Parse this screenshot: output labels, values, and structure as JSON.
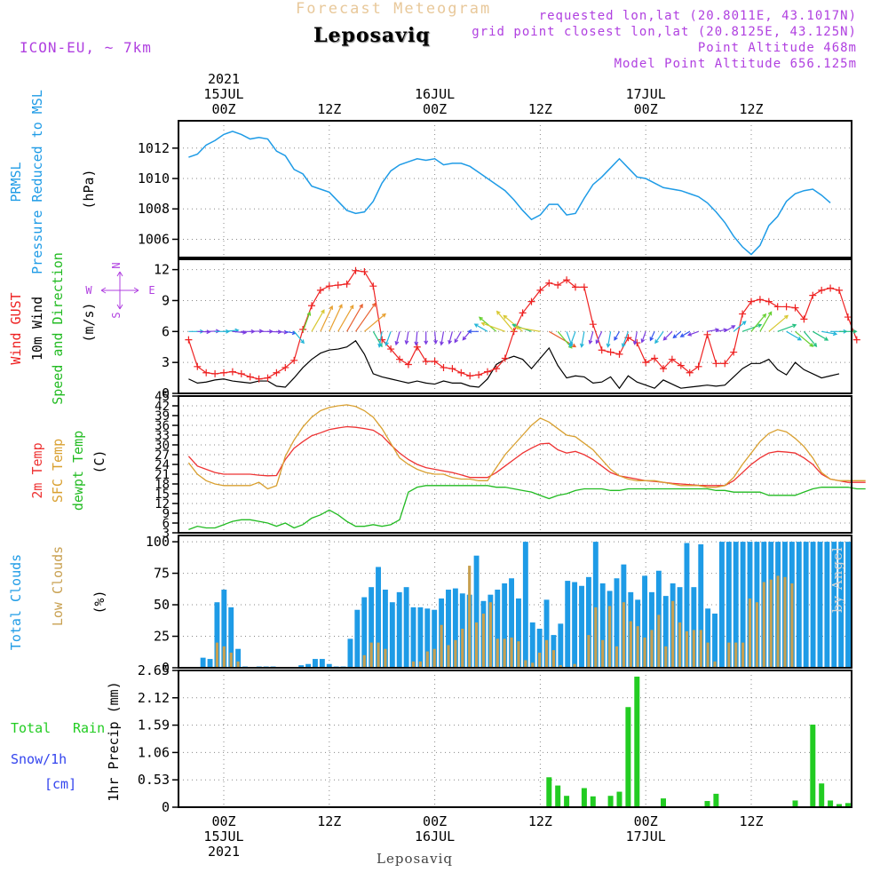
{
  "header": {
    "title": "Forecast Meteogram",
    "location": "Leposaviq",
    "model": "ICON-EU, ~ 7km",
    "requested": "requested lon,lat (20.8011E, 43.1017N)",
    "grid_point": "grid point closest lon,lat (20.8125E, 43.125N)",
    "point_altitude": "Point Altitude 468m",
    "model_altitude": "Model Point Altitude 656.125m"
  },
  "footer": {
    "location": "Leposaviq",
    "credit": "by Angel"
  },
  "time_axis": {
    "start": "2021-07-14T20:00Z",
    "step_hours": 1,
    "top_labels": [
      {
        "t": 4,
        "lines": [
          "2021",
          "15JUL",
          "00Z"
        ]
      },
      {
        "t": 16,
        "lines": [
          "12Z"
        ]
      },
      {
        "t": 28,
        "lines": [
          "16JUL",
          "00Z"
        ]
      },
      {
        "t": 40,
        "lines": [
          "12Z"
        ]
      },
      {
        "t": 52,
        "lines": [
          "17JUL",
          "00Z"
        ]
      },
      {
        "t": 64,
        "lines": [
          "12Z"
        ]
      }
    ],
    "bottom_labels": [
      {
        "t": 4,
        "lines": [
          "00Z",
          "15JUL",
          "2021"
        ]
      },
      {
        "t": 16,
        "lines": [
          "12Z"
        ]
      },
      {
        "t": 28,
        "lines": [
          "00Z",
          "16JUL"
        ]
      },
      {
        "t": 40,
        "lines": [
          "12Z"
        ]
      },
      {
        "t": 52,
        "lines": [
          "00Z",
          "17JUL"
        ]
      },
      {
        "t": 64,
        "lines": [
          "12Z"
        ]
      }
    ]
  },
  "colors": {
    "pressure": "#1e9be6",
    "gust": "#ee2222",
    "wind": "#000000",
    "wind_dir_label": "#22bb22",
    "temp2m": "#ee3333",
    "sfc_temp": "#d9a030",
    "dewpt": "#22bb22",
    "total_cloud": "#1e9be6",
    "low_cloud": "#c8a050",
    "rain": "#22cc22",
    "snow": "#3344ee",
    "compass": "#b040e0",
    "header_info": "#b040e0",
    "title": "#e8c89a"
  },
  "chart_data": [
    {
      "type": "line",
      "panel": "pressure",
      "ylabel": [
        "PRMSL",
        "Pressure Reduced to MSL"
      ],
      "unit": "(hPa)",
      "ylim": [
        1004.8,
        1013.8
      ],
      "yticks": [
        1006,
        1008,
        1010,
        1012
      ],
      "grid": true,
      "series": [
        {
          "name": "PRMSL",
          "values": [
            1011.4,
            1011.6,
            1012.2,
            1012.5,
            1012.9,
            1013.1,
            1012.9,
            1012.6,
            1012.7,
            1012.6,
            1011.8,
            1011.5,
            1010.6,
            1010.3,
            1009.5,
            1009.3,
            1009.1,
            1008.5,
            1007.9,
            1007.7,
            1007.8,
            1008.5,
            1009.7,
            1010.5,
            1010.9,
            1011.1,
            1011.3,
            1011.2,
            1011.3,
            1010.9,
            1011.0,
            1011.0,
            1010.8,
            1010.4,
            1010.0,
            1009.6,
            1009.2,
            1008.6,
            1007.9,
            1007.3,
            1007.6,
            1008.3,
            1008.3,
            1007.6,
            1007.7,
            1008.7,
            1009.6,
            1010.1,
            1010.7,
            1011.3,
            1010.7,
            1010.1,
            1010.0,
            1009.7,
            1009.4,
            1009.3,
            1009.2,
            1009.0,
            1008.8,
            1008.4,
            1007.8,
            1007.1,
            1006.2,
            1005.5,
            1005.0,
            1005.6,
            1006.9,
            1007.5,
            1008.5,
            1009.0,
            1009.2,
            1009.3,
            1008.9,
            1008.4
          ]
        }
      ]
    },
    {
      "type": "line",
      "panel": "wind",
      "ylabel": [
        "Wind GUST",
        "10m Wind",
        "Speed and Direction"
      ],
      "unit": "(m/s)",
      "ylim": [
        0,
        13
      ],
      "yticks": [
        0,
        3,
        6,
        9,
        12
      ],
      "compass_labels": {
        "n": "N",
        "s": "S",
        "e": "E",
        "w": "W"
      },
      "grid": true,
      "series": [
        {
          "name": "Wind GUST",
          "values": [
            5.2,
            2.6,
            2.0,
            1.9,
            2.0,
            2.1,
            1.9,
            1.6,
            1.4,
            1.5,
            2.0,
            2.5,
            3.2,
            6.2,
            8.5,
            10.0,
            10.4,
            10.5,
            10.6,
            11.9,
            11.8,
            10.4,
            5.2,
            4.3,
            3.3,
            2.8,
            4.5,
            3.1,
            3.1,
            2.5,
            2.4,
            2.0,
            1.7,
            1.8,
            2.1,
            2.4,
            3.4,
            6.0,
            7.8,
            8.9,
            10.0,
            10.7,
            10.5,
            11.0,
            10.3,
            10.3,
            6.7,
            4.2,
            4.0,
            3.8,
            5.4,
            4.9,
            3.0,
            3.4,
            2.4,
            3.3,
            2.7,
            2.0,
            2.6,
            5.7,
            2.9,
            2.9,
            4.0,
            7.7,
            8.9,
            9.1,
            8.9,
            8.4,
            8.4,
            8.3,
            7.2,
            9.5,
            10.0,
            10.2,
            10.0,
            7.4,
            5.2
          ]
        },
        {
          "name": "10m Wind",
          "values": [
            1.4,
            1.0,
            1.1,
            1.3,
            1.4,
            1.2,
            1.1,
            1.0,
            1.2,
            1.2,
            0.7,
            0.6,
            1.5,
            2.5,
            3.3,
            3.9,
            4.2,
            4.3,
            4.5,
            5.1,
            3.8,
            1.9,
            1.6,
            1.4,
            1.2,
            1.0,
            1.2,
            1.0,
            0.9,
            1.2,
            1.0,
            1.0,
            0.7,
            0.6,
            1.4,
            2.8,
            3.3,
            3.6,
            3.3,
            2.4,
            3.4,
            4.4,
            2.7,
            1.5,
            1.7,
            1.6,
            1.0,
            1.1,
            1.6,
            0.5,
            1.7,
            1.1,
            0.8,
            0.5,
            1.3,
            0.9,
            0.5,
            0.6,
            0.7,
            0.8,
            0.7,
            0.8,
            1.6,
            2.4,
            2.9,
            2.9,
            3.3,
            2.3,
            1.8,
            3.0,
            2.3,
            1.9,
            1.5,
            1.7,
            1.9
          ]
        }
      ],
      "wind_barb_level": 6,
      "wind_direction_deg": [
        270,
        272,
        268,
        270,
        265,
        275,
        270,
        268,
        270,
        272,
        275,
        280,
        320,
        200,
        210,
        205,
        205,
        210,
        210,
        215,
        230,
        330,
        10,
        20,
        15,
        10,
        5,
        0,
        355,
        10,
        15,
        30,
        40,
        90,
        120,
        130,
        110,
        140,
        130,
        110,
        100,
        300,
        320,
        340,
        20,
        10,
        15,
        25,
        10,
        30,
        20,
        10,
        20,
        25,
        35,
        45,
        50,
        60,
        70,
        260,
        260,
        240,
        230,
        250,
        220,
        210,
        230,
        250,
        300,
        310,
        320,
        300,
        280,
        270,
        270
      ]
    },
    {
      "type": "line",
      "panel": "temperature",
      "ylabel": [
        "2m Temp",
        "SFC Temp",
        "dewpt Temp"
      ],
      "unit": "(C)",
      "ylim": [
        3,
        45
      ],
      "yticks": [
        3,
        6,
        9,
        12,
        15,
        18,
        21,
        24,
        27,
        30,
        33,
        36,
        39,
        42,
        45
      ],
      "grid": true,
      "series": [
        {
          "name": "2m Temp",
          "values": [
            26.5,
            23.5,
            22.5,
            21.5,
            21.0,
            21.0,
            21.0,
            21.0,
            20.7,
            20.5,
            20.6,
            25.5,
            29.0,
            31.0,
            32.8,
            33.7,
            34.7,
            35.2,
            35.6,
            35.4,
            35.0,
            34.5,
            32.8,
            30.0,
            27.5,
            25.5,
            24.0,
            23.0,
            22.5,
            22.0,
            21.5,
            20.8,
            20.0,
            20.0,
            20.0,
            21.5,
            23.5,
            25.5,
            27.5,
            29.0,
            30.3,
            30.5,
            28.5,
            27.5,
            28.0,
            27.0,
            25.5,
            23.5,
            21.5,
            20.5,
            20.0,
            19.5,
            19.0,
            18.8,
            18.5,
            18.2,
            18.0,
            17.8,
            17.6,
            17.5,
            17.5,
            17.5,
            19.0,
            21.5,
            24.0,
            26.0,
            27.5,
            28.0,
            27.8,
            27.5,
            26.0,
            24.0,
            21.0,
            19.5,
            19.0,
            18.5,
            18.5,
            18.5
          ]
        },
        {
          "name": "SFC Temp",
          "values": [
            24.5,
            21.0,
            19.0,
            18.0,
            17.5,
            17.5,
            17.5,
            17.5,
            18.5,
            16.5,
            17.5,
            26.5,
            31.5,
            35.5,
            38.5,
            40.5,
            41.5,
            42.0,
            42.3,
            41.8,
            40.5,
            38.5,
            35.0,
            30.5,
            26.0,
            24.0,
            22.5,
            21.5,
            21.0,
            21.0,
            20.0,
            19.5,
            19.5,
            19.0,
            19.0,
            23.0,
            27.0,
            30.0,
            33.0,
            36.0,
            38.2,
            37.0,
            35.0,
            33.0,
            32.5,
            30.5,
            28.5,
            25.5,
            22.5,
            20.5,
            19.5,
            19.0,
            19.0,
            19.0,
            18.5,
            18.0,
            17.5,
            17.5,
            17.5,
            17.0,
            17.0,
            17.5,
            20.0,
            24.0,
            27.5,
            31.0,
            33.5,
            34.7,
            34.0,
            32.0,
            29.5,
            26.0,
            21.5,
            19.5,
            19.0,
            19.0,
            19.0,
            19.0
          ]
        },
        {
          "name": "dewpt Temp",
          "values": [
            4.0,
            5.0,
            4.5,
            4.5,
            5.5,
            6.5,
            7.0,
            7.0,
            6.5,
            6.0,
            5.0,
            6.0,
            4.5,
            5.5,
            7.5,
            8.5,
            10.0,
            8.5,
            6.5,
            5.0,
            5.0,
            5.5,
            5.0,
            5.5,
            7.0,
            15.5,
            17.0,
            17.5,
            17.5,
            17.5,
            17.5,
            17.5,
            17.5,
            17.5,
            17.5,
            17.0,
            17.0,
            16.5,
            16.0,
            15.5,
            14.5,
            13.5,
            14.5,
            15.0,
            16.0,
            16.5,
            16.5,
            16.5,
            16.0,
            16.0,
            16.5,
            16.5,
            16.5,
            16.5,
            16.5,
            16.5,
            16.5,
            16.5,
            16.5,
            16.5,
            16.0,
            16.0,
            15.5,
            15.5,
            15.5,
            15.5,
            14.5,
            14.5,
            14.5,
            14.5,
            15.5,
            16.5,
            17.0,
            17.0,
            17.0,
            17.0,
            16.5,
            16.5
          ]
        }
      ]
    },
    {
      "type": "bar",
      "panel": "clouds",
      "ylabel": [
        "Total Clouds",
        "Low Clouds"
      ],
      "unit": "(%)",
      "ylim": [
        0,
        105
      ],
      "yticks": [
        0,
        25,
        50,
        75,
        100
      ],
      "grid": true,
      "series": [
        {
          "name": "Total Clouds",
          "values": [
            0,
            0,
            0,
            8,
            7,
            52,
            62,
            48,
            15,
            1,
            0,
            1,
            1,
            1,
            0,
            0,
            0,
            2,
            3,
            7,
            7,
            3,
            1,
            1,
            23,
            46,
            56,
            64,
            80,
            62,
            52,
            60,
            64,
            48,
            48,
            47,
            46,
            55,
            62,
            63,
            59,
            58,
            89,
            53,
            58,
            62,
            67,
            71,
            55,
            100,
            36,
            31,
            54,
            26,
            35,
            69,
            68,
            65,
            72,
            100,
            67,
            61,
            71,
            82,
            60,
            54,
            73,
            60,
            77,
            57,
            67,
            64,
            99,
            64,
            98,
            47,
            43,
            100,
            100,
            100,
            100,
            100,
            100,
            100,
            100,
            100,
            100,
            100,
            100,
            100,
            100,
            100,
            100,
            100,
            100,
            100
          ]
        },
        {
          "name": "Low Clouds",
          "values": [
            0,
            0,
            0,
            0,
            0,
            20,
            17,
            12,
            5,
            0,
            0,
            0,
            0,
            0,
            0,
            0,
            0,
            0,
            0,
            0,
            0,
            0,
            0,
            0,
            0,
            0,
            10,
            20,
            20,
            15,
            0,
            0,
            0,
            5,
            5,
            13,
            15,
            34,
            18,
            22,
            31,
            81,
            36,
            43,
            52,
            23,
            23,
            24,
            21,
            6,
            4,
            12,
            22,
            14,
            2,
            0,
            3,
            0,
            26,
            48,
            22,
            49,
            17,
            52,
            37,
            33,
            24,
            30,
            42,
            17,
            53,
            36,
            29,
            30,
            30,
            20,
            5,
            0,
            20,
            20,
            20,
            55,
            52,
            68,
            70,
            73,
            72,
            67
          ]
        }
      ]
    },
    {
      "type": "bar",
      "panel": "precip",
      "ylabel": [
        "1hr Precip (mm)"
      ],
      "legend": [
        "Total Rain",
        "Snow/1h",
        "[cm]"
      ],
      "ylim": [
        0,
        2.65
      ],
      "yticks": [
        0,
        0.53,
        1.06,
        1.59,
        2.12,
        2.65
      ],
      "grid": true,
      "series": [
        {
          "name": "Total Rain",
          "values": [
            0,
            0,
            0,
            0,
            0,
            0,
            0,
            0,
            0,
            0,
            0,
            0,
            0,
            0,
            0,
            0,
            0,
            0,
            0,
            0,
            0,
            0,
            0,
            0,
            0,
            0,
            0,
            0,
            0,
            0,
            0,
            0,
            0,
            0,
            0,
            0,
            0,
            0,
            0,
            0,
            0,
            0.58,
            0.42,
            0.22,
            0,
            0.37,
            0.21,
            0,
            0.22,
            0.3,
            1.94,
            2.53,
            0,
            0,
            0.17,
            0,
            0,
            0,
            0,
            0.12,
            0.26,
            0,
            0,
            0,
            0,
            0,
            0,
            0,
            0,
            0.13,
            0,
            1.6,
            0.46,
            0.13,
            0.06,
            0.08
          ]
        }
      ]
    }
  ]
}
